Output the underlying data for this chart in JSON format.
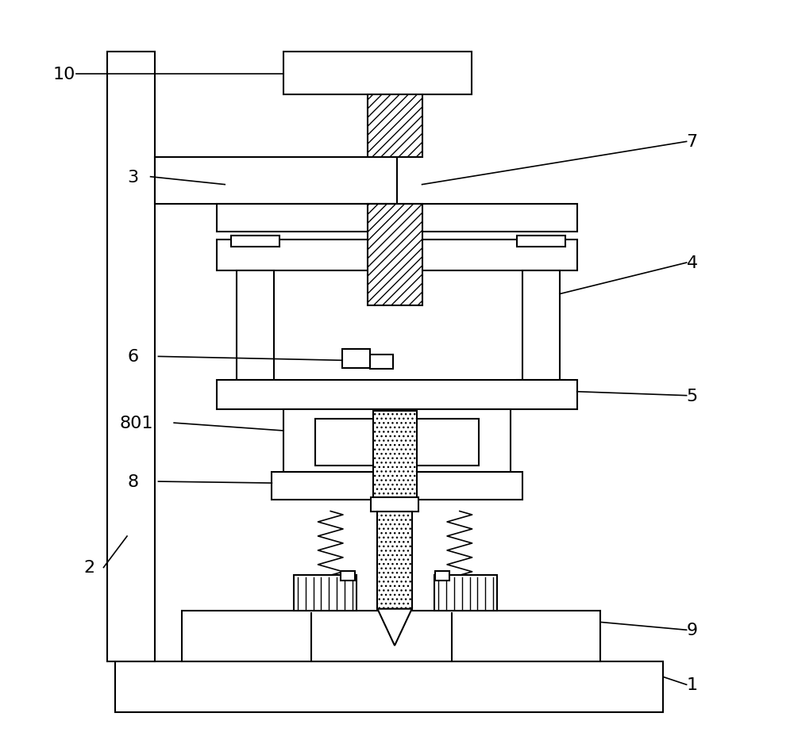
{
  "background_color": "#ffffff",
  "line_color": "#000000",
  "label_fontsize": 16,
  "fig_width": 10.0,
  "fig_height": 9.53
}
